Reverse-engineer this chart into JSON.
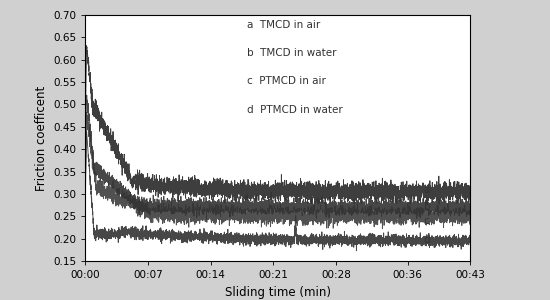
{
  "title": "",
  "xlabel": "Sliding time (min)",
  "ylabel": "Friction coefficent",
  "xlim_minutes": [
    0,
    43
  ],
  "ylim": [
    0.15,
    0.7
  ],
  "yticks": [
    0.15,
    0.2,
    0.25,
    0.3,
    0.35,
    0.4,
    0.45,
    0.5,
    0.55,
    0.6,
    0.65,
    0.7
  ],
  "xticks_minutes": [
    0,
    7,
    14,
    21,
    28,
    36,
    43
  ],
  "xtick_labels": [
    "00:00",
    "00:07",
    "00:14",
    "00:21",
    "00:28",
    "00:36",
    "00:43"
  ],
  "legend_labels": [
    "a  TMCD in air",
    "b  TMCD in water",
    "c  PTMCD in air",
    "d  PTMCD in water"
  ],
  "line_color": "#333333",
  "background_color": "#d0d0d0",
  "plot_bg_color": "#ffffff",
  "label_fontsize": 8.5,
  "tick_fontsize": 7.5,
  "legend_fontsize": 7.5
}
